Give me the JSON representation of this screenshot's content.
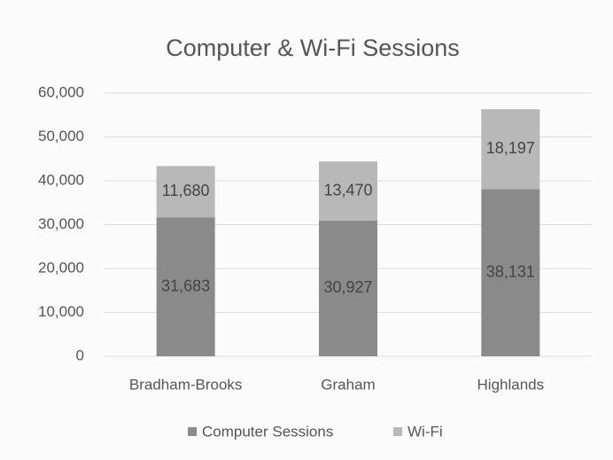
{
  "chart_data": {
    "type": "bar",
    "stacked": true,
    "title": "Computer & Wi-Fi Sessions",
    "categories": [
      "Bradham-Brooks",
      "Graham",
      "Highlands"
    ],
    "series": [
      {
        "name": "Computer Sessions",
        "color": "#8a8a8a",
        "values": [
          31683,
          30927,
          38131
        ],
        "value_labels": [
          "31,683",
          "30,927",
          "38,131"
        ]
      },
      {
        "name": "Wi-Fi",
        "color": "#b8b8b8",
        "values": [
          11680,
          13470,
          18197
        ],
        "value_labels": [
          "11,680",
          "13,470",
          "18,197"
        ]
      }
    ],
    "ylim": [
      0,
      60000
    ],
    "yticks": [
      0,
      {
        "value": 10000,
        "label": "10,000"
      },
      {
        "value": 20000,
        "label": "20,000"
      },
      {
        "value": 30000,
        "label": "30,000"
      },
      {
        "value": 40000,
        "label": "40,000"
      },
      {
        "value": 50000,
        "label": "50,000"
      },
      {
        "value": 60000,
        "label": "60,000"
      }
    ],
    "grid": true,
    "legend": "bottom"
  }
}
